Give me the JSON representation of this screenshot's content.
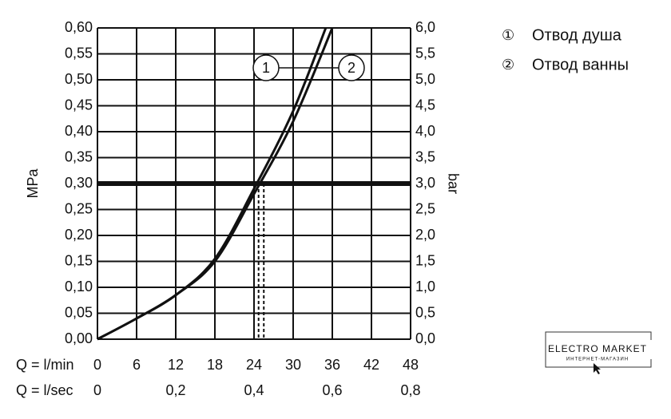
{
  "chart_data": {
    "type": "line",
    "y_label": "MPa",
    "y2_label": "bar",
    "x_label": "Q = l/min",
    "x2_label": "Q = l/sec",
    "xlim": [
      0,
      48
    ],
    "xticks": [
      0,
      6,
      12,
      18,
      24,
      30,
      36,
      42,
      48
    ],
    "x2lim": [
      0,
      0.8
    ],
    "x2ticks": [
      0,
      {
        "value": 0.2,
        "label": "0,2"
      },
      {
        "value": 0.4,
        "label": "0,4"
      },
      {
        "value": 0.6,
        "label": "0,6"
      },
      {
        "value": 0.8,
        "label": "0,8"
      }
    ],
    "ylim": [
      0,
      0.6
    ],
    "yticks": [
      {
        "value": 0,
        "label": "0,00"
      },
      {
        "value": 0.05,
        "label": "0,05"
      },
      {
        "value": 0.1,
        "label": "0,10"
      },
      {
        "value": 0.15,
        "label": "0,15"
      },
      {
        "value": 0.2,
        "label": "0,20"
      },
      {
        "value": 0.25,
        "label": "0,25"
      },
      {
        "value": 0.3,
        "label": "0,30"
      },
      {
        "value": 0.35,
        "label": "0,35"
      },
      {
        "value": 0.4,
        "label": "0,40"
      },
      {
        "value": 0.45,
        "label": "0,45"
      },
      {
        "value": 0.5,
        "label": "0,50"
      },
      {
        "value": 0.55,
        "label": "0,55"
      },
      {
        "value": 0.6,
        "label": "0,60"
      }
    ],
    "y2lim": [
      0,
      6
    ],
    "y2ticks": [
      {
        "value": 0,
        "label": "0,0"
      },
      {
        "value": 0.5,
        "label": "0,5"
      },
      {
        "value": 1,
        "label": "1,0"
      },
      {
        "value": 1.5,
        "label": "1,5"
      },
      {
        "value": 2,
        "label": "2,0"
      },
      {
        "value": 2.5,
        "label": "2,5"
      },
      {
        "value": 3,
        "label": "3,0"
      },
      {
        "value": 3.5,
        "label": "3,5"
      },
      {
        "value": 4,
        "label": "4,0"
      },
      {
        "value": 4.5,
        "label": "4,5"
      },
      {
        "value": 5,
        "label": "5,0"
      },
      {
        "value": 5.5,
        "label": "5,5"
      },
      {
        "value": 6,
        "label": "6,0"
      }
    ],
    "grid": true,
    "reference_y": 0.3,
    "reference_x": [
      24.7,
      25.5
    ],
    "series": [
      {
        "name": "Отвод душа",
        "legend_marker": "①",
        "curve_label": "1",
        "color": "#111111",
        "x": [
          0,
          6,
          12,
          18,
          24,
          30,
          35
        ],
        "values": [
          0,
          0.04,
          0.085,
          0.155,
          0.29,
          0.44,
          0.6
        ]
      },
      {
        "name": "Отвод ванны",
        "legend_marker": "②",
        "curve_label": "2",
        "color": "#111111",
        "x": [
          0,
          6,
          12,
          18,
          24,
          30,
          36
        ],
        "values": [
          0,
          0.04,
          0.085,
          0.15,
          0.28,
          0.42,
          0.6
        ]
      }
    ]
  },
  "logo": {
    "title": "ELECTRO MARKET",
    "subtitle": "ИНТЕРНЕТ-МАГАЗИН"
  }
}
